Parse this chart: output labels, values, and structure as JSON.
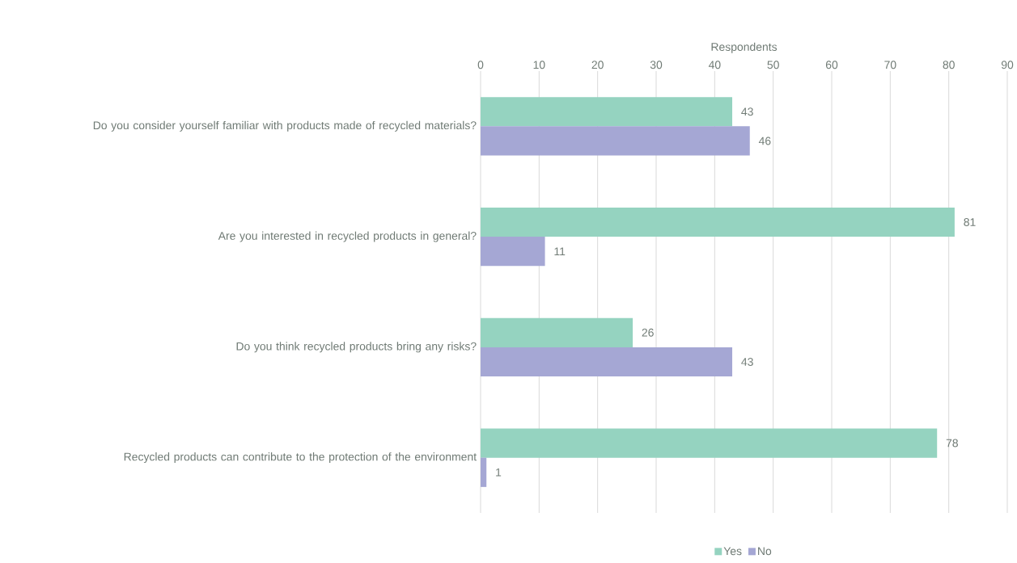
{
  "chart_data": {
    "type": "bar",
    "orientation": "horizontal",
    "xlabel": "Respondents",
    "categories": [
      "Do you consider yourself familiar with products made of recycled materials?",
      "Are you interested in recycled products in general?",
      "Do you think recycled products bring any risks?",
      "Recycled products can contribute to the protection of the environment"
    ],
    "series": [
      {
        "name": "Yes",
        "color": "#95d3c0",
        "values": [
          43,
          81,
          26,
          78
        ]
      },
      {
        "name": "No",
        "color": "#a5a7d4",
        "values": [
          46,
          11,
          43,
          1
        ]
      }
    ],
    "xlim": [
      0,
      90
    ],
    "xticks": [
      0,
      10,
      20,
      30,
      40,
      50,
      60,
      70,
      80,
      90
    ],
    "grid": "x",
    "legend": "bottom",
    "data_labels": true
  }
}
